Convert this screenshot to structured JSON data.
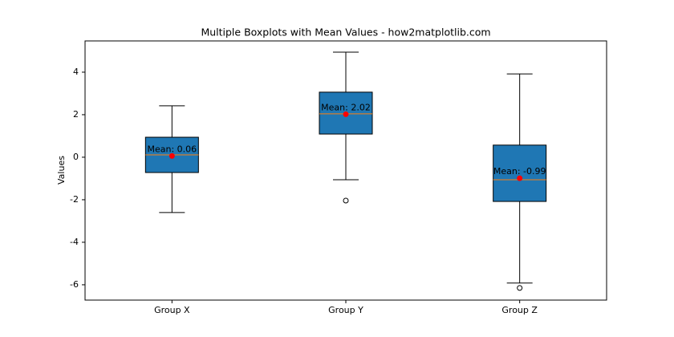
{
  "chart_data": {
    "type": "box",
    "title": "Multiple Boxplots with Mean Values - how2matplotlib.com",
    "ylabel": "Values",
    "categories": [
      "Group X",
      "Group Y",
      "Group Z"
    ],
    "boxes": [
      {
        "whisker_low": -2.6,
        "q1": -0.72,
        "median": 0.11,
        "q3": 0.94,
        "whisker_high": 2.42,
        "mean": 0.06,
        "mean_label": "Mean: 0.06",
        "outliers": []
      },
      {
        "whisker_low": -1.06,
        "q1": 1.09,
        "median": 2.04,
        "q3": 3.06,
        "whisker_high": 4.94,
        "mean": 2.02,
        "mean_label": "Mean: 2.02",
        "outliers": [
          -2.04
        ]
      },
      {
        "whisker_low": -5.92,
        "q1": -2.08,
        "median": -1.06,
        "q3": 0.57,
        "whisker_high": 3.92,
        "mean": -0.99,
        "mean_label": "Mean: -0.99",
        "outliers": [
          -6.15
        ]
      }
    ],
    "box_color": "#1f77b4",
    "median_color": "#ff7f0e",
    "mean_color": "#ff0000",
    "ylim": [
      -6.72,
      5.47
    ],
    "yticks": [
      -6,
      -4,
      -2,
      0,
      2,
      4
    ]
  }
}
